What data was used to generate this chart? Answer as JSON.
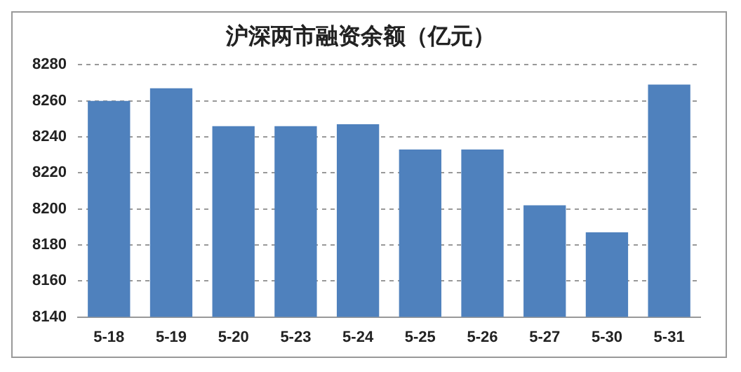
{
  "chart_data": {
    "type": "bar",
    "title": "沪深两市融资余额（亿元）",
    "categories": [
      "5-18",
      "5-19",
      "5-20",
      "5-23",
      "5-24",
      "5-25",
      "5-26",
      "5-27",
      "5-30",
      "5-31"
    ],
    "values": [
      8260,
      8267,
      8246,
      8246,
      8247,
      8233,
      8233,
      8202,
      8187,
      8269
    ],
    "color": "#4f81bd",
    "ylim": [
      8140,
      8280
    ],
    "yticks": [
      8140,
      8160,
      8180,
      8200,
      8220,
      8240,
      8260,
      8280
    ],
    "grid": "y"
  }
}
